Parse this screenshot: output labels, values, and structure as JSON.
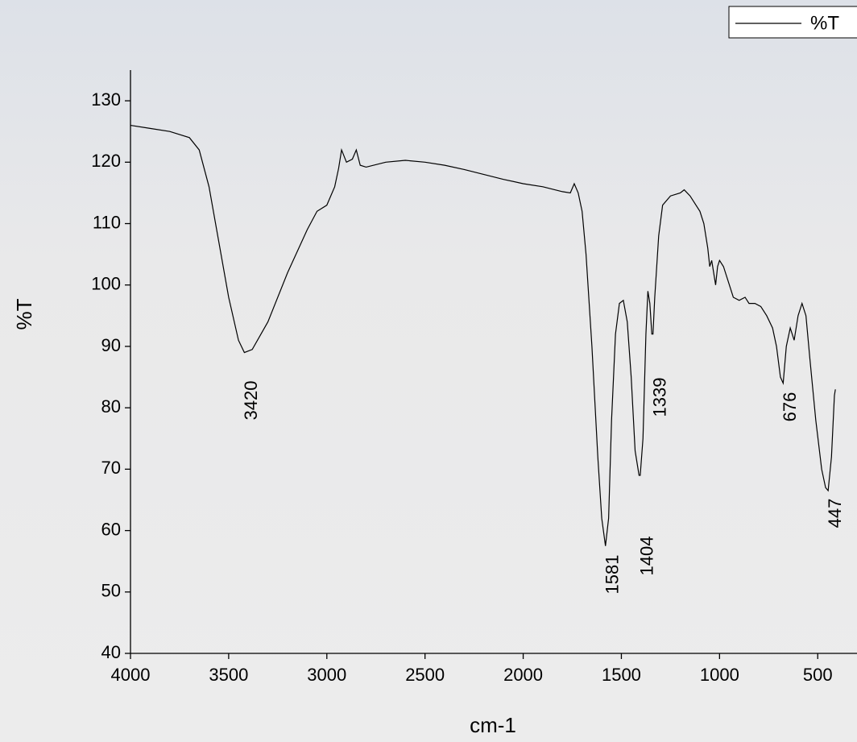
{
  "chart_data": {
    "type": "line",
    "xlabel": "cm-1",
    "ylabel": "%T",
    "x": [
      4000,
      3900,
      3800,
      3700,
      3650,
      3600,
      3550,
      3500,
      3450,
      3420,
      3380,
      3300,
      3200,
      3100,
      3050,
      3000,
      2960,
      2940,
      2925,
      2900,
      2870,
      2850,
      2830,
      2800,
      2700,
      2600,
      2500,
      2400,
      2300,
      2200,
      2100,
      2000,
      1900,
      1800,
      1760,
      1740,
      1720,
      1700,
      1680,
      1650,
      1620,
      1600,
      1581,
      1565,
      1550,
      1530,
      1510,
      1490,
      1470,
      1450,
      1430,
      1410,
      1404,
      1390,
      1375,
      1365,
      1355,
      1345,
      1339,
      1330,
      1310,
      1290,
      1250,
      1200,
      1180,
      1150,
      1100,
      1080,
      1060,
      1050,
      1040,
      1030,
      1020,
      1010,
      1000,
      980,
      960,
      930,
      900,
      870,
      850,
      820,
      790,
      760,
      730,
      710,
      690,
      676,
      660,
      640,
      620,
      600,
      580,
      560,
      540,
      510,
      480,
      460,
      447,
      430,
      415,
      410
    ],
    "series": [
      {
        "name": "%T",
        "color": "#000000",
        "values": [
          126,
          125.5,
          125,
          124,
          122,
          116,
          107,
          98,
          91,
          89,
          89.5,
          94,
          102,
          109,
          112,
          113,
          116,
          119,
          122,
          120,
          120.5,
          122,
          119.5,
          119.2,
          120,
          120.3,
          120,
          119.5,
          118.8,
          118,
          117.2,
          116.5,
          116,
          115.2,
          115,
          116.5,
          115,
          112,
          105,
          90,
          72,
          62,
          57.5,
          62,
          78,
          92,
          97,
          97.5,
          94,
          85,
          73,
          69,
          69,
          75,
          92,
          99,
          97,
          92,
          92,
          98,
          108,
          113,
          114.5,
          115,
          115.5,
          114.5,
          112,
          110,
          106,
          103,
          104,
          102,
          100,
          103,
          104,
          103,
          101,
          98,
          97.5,
          98,
          97,
          97,
          96.5,
          95,
          93,
          90,
          85,
          84,
          90,
          93,
          91,
          95,
          97,
          95,
          88,
          78,
          70,
          67,
          66.5,
          72,
          82,
          83
        ]
      }
    ],
    "annotations": [
      "3420",
      "1581",
      "1404",
      "1339",
      "676",
      "447"
    ],
    "xlim": [
      4000,
      300
    ],
    "ylim": [
      40,
      135
    ],
    "xticks": [
      4000,
      3500,
      3000,
      2500,
      2000,
      1500,
      1000,
      500
    ],
    "yticks": [
      40,
      50,
      60,
      70,
      80,
      90,
      100,
      110,
      120,
      130
    ],
    "legend": "upper right",
    "grid": false
  }
}
